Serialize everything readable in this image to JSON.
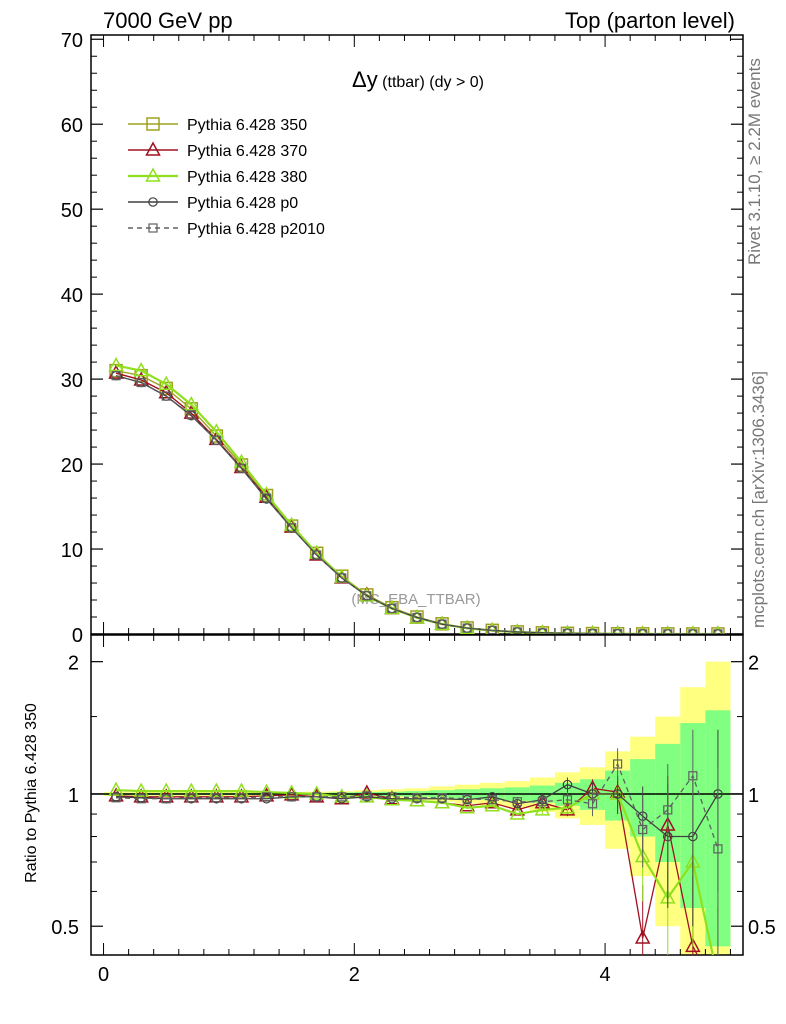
{
  "header": {
    "left": "7000 GeV pp",
    "right": "Top (parton level)",
    "side_top": "Rivet 3.1.10, ≥ 2.2M events",
    "side_bottom": "mcplots.cern.ch [arXiv:1306.3436]"
  },
  "colors": {
    "p350": "#a0a020",
    "p370": "#a01020",
    "p380": "#90e020",
    "p0": "#404040",
    "p2010": "#606060",
    "band_yellow": "#ffff80",
    "band_green": "#80ff80"
  },
  "chart_data": [
    {
      "type": "line",
      "title_main": "Δy",
      "title_sub": " (ttbar) (dy > 0)",
      "watermark": "(MC_EBA_TTBAR)",
      "ylim": [
        0,
        70.5
      ],
      "xlim": [
        -0.1,
        5.1
      ],
      "yticks": [
        0,
        10,
        20,
        30,
        40,
        50,
        60,
        70
      ],
      "x": [
        0.1,
        0.3,
        0.5,
        0.7,
        0.9,
        1.1,
        1.3,
        1.5,
        1.7,
        1.9,
        2.1,
        2.3,
        2.5,
        2.7,
        2.9,
        3.1,
        3.3,
        3.5,
        3.7,
        3.9,
        4.1,
        4.3,
        4.5,
        4.7,
        4.9
      ],
      "series": [
        {
          "name": "Pythia 6.428 350",
          "key": "p350",
          "marker": "square",
          "dashed": false,
          "values": [
            31.0,
            30.4,
            28.9,
            26.5,
            23.3,
            19.9,
            16.3,
            12.7,
            9.5,
            6.8,
            4.6,
            3.1,
            2.0,
            1.2,
            0.72,
            0.43,
            0.25,
            0.14,
            0.08,
            0.05,
            0.03,
            0.02,
            0.015,
            0.01,
            0.008
          ]
        },
        {
          "name": "Pythia 6.428 370",
          "key": "p370",
          "marker": "triangle",
          "dashed": false,
          "values": [
            30.7,
            29.9,
            28.4,
            26.0,
            22.9,
            19.6,
            16.1,
            12.6,
            9.3,
            6.6,
            4.6,
            3.0,
            1.9,
            1.15,
            0.67,
            0.4,
            0.22,
            0.13,
            0.07,
            0.05,
            0.03,
            0.01,
            0.012,
            0.004,
            0.003
          ]
        },
        {
          "name": "Pythia 6.428 380",
          "key": "p380",
          "marker": "triangle",
          "dashed": false,
          "values": [
            31.6,
            31.0,
            29.4,
            27.0,
            23.8,
            20.2,
            16.4,
            12.8,
            9.5,
            6.7,
            4.5,
            3.0,
            1.9,
            1.15,
            0.67,
            0.4,
            0.22,
            0.13,
            0.07,
            0.05,
            0.03,
            0.015,
            0.009,
            0.007,
            0.003
          ]
        },
        {
          "name": "Pythia 6.428 p0",
          "key": "p0",
          "marker": "circle",
          "dashed": false,
          "values": [
            30.4,
            29.6,
            28.0,
            25.7,
            22.8,
            19.5,
            15.9,
            12.5,
            9.3,
            6.6,
            4.5,
            3.0,
            1.95,
            1.15,
            0.7,
            0.42,
            0.24,
            0.14,
            0.085,
            0.05,
            0.03,
            0.018,
            0.012,
            0.008,
            0.008
          ]
        },
        {
          "name": "Pythia 6.428 p2010",
          "key": "p2010",
          "marker": "square-small",
          "dashed": true,
          "values": [
            30.4,
            29.6,
            28.0,
            25.8,
            22.8,
            19.5,
            16.0,
            12.5,
            9.3,
            6.6,
            4.5,
            3.0,
            1.95,
            1.17,
            0.7,
            0.42,
            0.24,
            0.13,
            0.08,
            0.048,
            0.035,
            0.017,
            0.014,
            0.011,
            0.006
          ]
        }
      ]
    },
    {
      "type": "line",
      "ylabel": "Ratio to Pythia 6.428 350",
      "ylog": true,
      "ylim": [
        0.43,
        2.3
      ],
      "xlim": [
        -0.1,
        5.1
      ],
      "yticks": [
        0.5,
        1,
        2
      ],
      "xticks": [
        0,
        2,
        4
      ],
      "x": [
        0.1,
        0.3,
        0.5,
        0.7,
        0.9,
        1.1,
        1.3,
        1.5,
        1.7,
        1.9,
        2.1,
        2.3,
        2.5,
        2.7,
        2.9,
        3.1,
        3.3,
        3.5,
        3.7,
        3.9,
        4.1,
        4.3,
        4.5,
        4.7,
        4.9
      ],
      "band_yellow": [
        0.01,
        0.01,
        0.01,
        0.01,
        0.01,
        0.01,
        0.01,
        0.01,
        0.012,
        0.015,
        0.02,
        0.025,
        0.03,
        0.04,
        0.05,
        0.06,
        0.07,
        0.09,
        0.12,
        0.15,
        0.25,
        0.35,
        0.5,
        0.75,
        1.0
      ],
      "band_green": [
        0.005,
        0.005,
        0.005,
        0.005,
        0.005,
        0.005,
        0.005,
        0.005,
        0.006,
        0.008,
        0.01,
        0.012,
        0.015,
        0.02,
        0.025,
        0.03,
        0.035,
        0.045,
        0.06,
        0.08,
        0.13,
        0.2,
        0.3,
        0.45,
        0.55
      ],
      "series": [
        {
          "name": "Pythia 6.428 370",
          "key": "p370",
          "marker": "triangle",
          "values": [
            0.99,
            0.985,
            0.985,
            0.985,
            0.985,
            0.985,
            0.99,
            0.995,
            0.985,
            0.975,
            1.005,
            0.975,
            0.965,
            0.955,
            0.94,
            0.955,
            0.92,
            0.955,
            0.92,
            1.03,
            1.01,
            0.47,
            0.85,
            0.45,
            0.35
          ],
          "errors": [
            0,
            0,
            0,
            0,
            0,
            0,
            0,
            0,
            0,
            0,
            0,
            0,
            0,
            0,
            0,
            0,
            0,
            0.02,
            0.03,
            0.05,
            0.08,
            0.15,
            0.25,
            0.2,
            0.2
          ]
        },
        {
          "name": "Pythia 6.428 380",
          "key": "p380",
          "marker": "triangle",
          "values": [
            1.02,
            1.015,
            1.015,
            1.015,
            1.015,
            1.015,
            1.01,
            1.005,
            1.0,
            0.985,
            0.985,
            0.97,
            0.965,
            0.955,
            0.93,
            0.94,
            0.9,
            0.92,
            0.93,
            1.0,
            1.0,
            0.72,
            0.58,
            0.7,
            0.38
          ],
          "errors": [
            0,
            0,
            0,
            0,
            0,
            0,
            0,
            0,
            0,
            0,
            0,
            0,
            0,
            0,
            0,
            0,
            0,
            0.02,
            0.03,
            0.05,
            0.08,
            0.15,
            0.2,
            0.25,
            0.2
          ]
        },
        {
          "name": "Pythia 6.428 p0",
          "key": "p0",
          "marker": "circle",
          "values": [
            0.985,
            0.98,
            0.975,
            0.975,
            0.975,
            0.975,
            0.975,
            0.985,
            0.985,
            0.975,
            0.985,
            0.975,
            0.975,
            0.975,
            0.97,
            0.985,
            0.95,
            0.97,
            1.05,
            1.0,
            1.0,
            0.89,
            0.8,
            0.8,
            1.0
          ],
          "errors": [
            0,
            0,
            0,
            0,
            0,
            0,
            0,
            0,
            0,
            0,
            0,
            0,
            0,
            0,
            0,
            0,
            0.02,
            0.03,
            0.04,
            0.06,
            0.1,
            0.15,
            0.25,
            0.3,
            0.4
          ]
        },
        {
          "name": "Pythia 6.428 p2010",
          "key": "p2010",
          "marker": "square-small",
          "values": [
            0.98,
            0.975,
            0.975,
            0.98,
            0.98,
            0.98,
            0.985,
            0.985,
            0.985,
            0.985,
            0.99,
            0.985,
            0.98,
            0.98,
            0.975,
            0.97,
            0.96,
            0.96,
            0.97,
            0.95,
            1.17,
            0.83,
            0.92,
            1.1,
            0.75
          ],
          "errors": [
            0,
            0,
            0,
            0,
            0,
            0,
            0,
            0,
            0,
            0,
            0,
            0,
            0,
            0,
            0,
            0,
            0.02,
            0.03,
            0.04,
            0.06,
            0.1,
            0.15,
            0.25,
            0.3,
            0.4
          ]
        }
      ]
    }
  ]
}
